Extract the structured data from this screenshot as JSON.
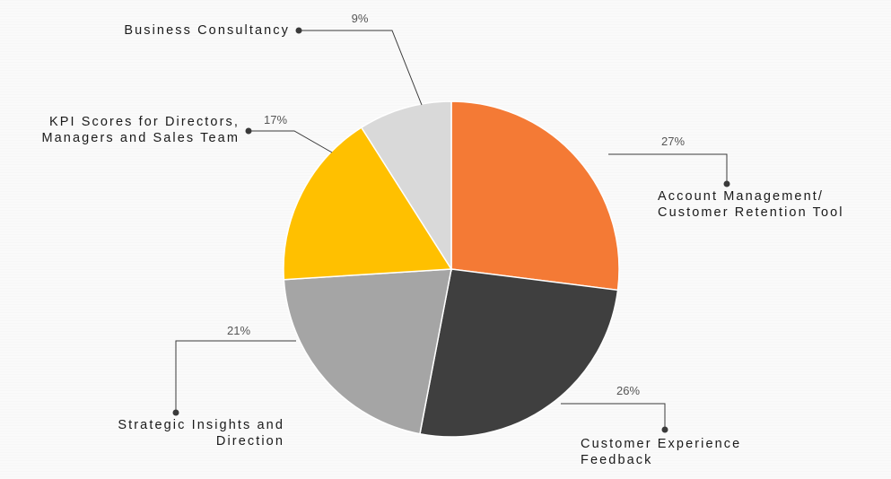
{
  "chart_data": {
    "type": "pie",
    "title": "",
    "start_angle_deg": 0,
    "direction": "clockwise",
    "legend": "none",
    "slices": [
      {
        "label_lines": [
          "Account Management/",
          "Customer Retention Tool"
        ],
        "percent_label": "27%",
        "value": 27,
        "color": "#f47a35"
      },
      {
        "label_lines": [
          "Customer Experience",
          "Feedback"
        ],
        "percent_label": "26%",
        "value": 26,
        "color": "#3f3f3f"
      },
      {
        "label_lines": [
          "Strategic Insights and",
          "Direction"
        ],
        "percent_label": "21%",
        "value": 21,
        "color": "#a5a5a5"
      },
      {
        "label_lines": [
          "KPI Scores for Directors,",
          "Managers and Sales Team"
        ],
        "percent_label": "17%",
        "value": 17,
        "color": "#ffc000"
      },
      {
        "label_lines": [
          "Business Consultancy"
        ],
        "percent_label": "9%",
        "value": 9,
        "color": "#d9d9d9"
      }
    ]
  }
}
